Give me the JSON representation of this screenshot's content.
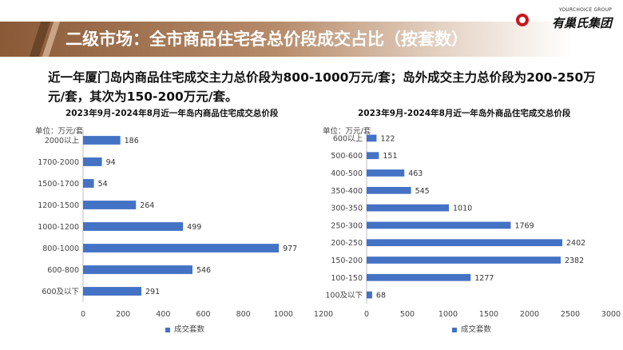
{
  "header": {
    "title": "二级市场：全市商品住宅各总价段成交占比（按套数）"
  },
  "logo": {
    "sub": "YOURCHOICE GROUP",
    "name": "有巢氏集团"
  },
  "summary": "近一年厦门岛内商品住宅成交主力总价段为800-1000万元/套；岛外成交主力总价段为200-250万元/套，其次为150-200万元/套。",
  "colors": {
    "bar": "#4472c4",
    "header": "#8a5a37"
  },
  "chart_data": [
    {
      "type": "bar",
      "orientation": "horizontal",
      "title": "2023年9月-2024年8月近一年岛内商品住宅成交总价段",
      "unit": "单位：万元/套",
      "categories": [
        "2000以上",
        "1700-2000",
        "1500-1700",
        "1200-1500",
        "1000-1200",
        "800-1000",
        "600-800",
        "600及以下"
      ],
      "series": [
        {
          "name": "成交套数",
          "values": [
            186,
            94,
            54,
            264,
            499,
            977,
            546,
            291
          ]
        }
      ],
      "xlim": [
        0,
        1200
      ],
      "xticks": [
        0,
        200,
        400,
        600,
        800,
        1000,
        1200
      ],
      "legend": "bottom"
    },
    {
      "type": "bar",
      "orientation": "horizontal",
      "title": "2023年9月-2024年8月近一年岛外商品住宅成交总价段",
      "unit": "单位：万元/套",
      "categories": [
        "600以上",
        "500-600",
        "400-500",
        "350-400",
        "300-350",
        "250-300",
        "200-250",
        "150-200",
        "100-150",
        "100及以下"
      ],
      "series": [
        {
          "name": "成交套数",
          "values": [
            122,
            151,
            463,
            545,
            1010,
            1769,
            2402,
            2382,
            1277,
            68
          ]
        }
      ],
      "xlim": [
        0,
        3000
      ],
      "xticks": [
        0,
        500,
        1000,
        1500,
        2000,
        2500,
        3000
      ],
      "legend": "bottom"
    }
  ]
}
